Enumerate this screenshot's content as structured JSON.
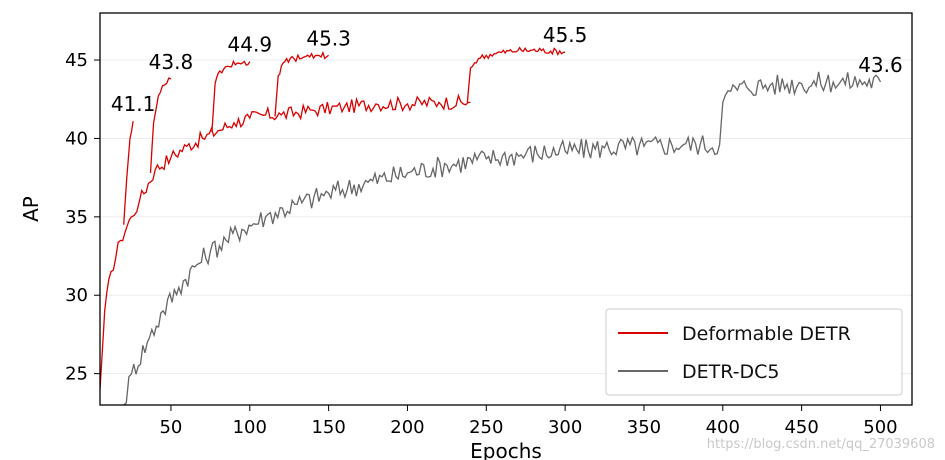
{
  "chart_data": {
    "type": "line",
    "title": "",
    "xlabel": "Epochs",
    "ylabel": "AP",
    "xlim": [
      5,
      520
    ],
    "ylim": [
      23,
      48
    ],
    "xticks": [
      50,
      100,
      150,
      200,
      250,
      300,
      350,
      400,
      450,
      500
    ],
    "yticks": [
      25,
      30,
      35,
      40,
      45
    ],
    "grid": "horizontal",
    "legend_position": "lower-right",
    "series": [
      {
        "name": "Deformable DETR",
        "color": "#d90000",
        "x": [
          5,
          8,
          12,
          18,
          25,
          30,
          40,
          50,
          60,
          70,
          80,
          90,
          100,
          110,
          120,
          140,
          160,
          180,
          200,
          220,
          240
        ],
        "y": [
          24,
          29,
          31.5,
          33.5,
          35,
          36,
          38,
          38.8,
          39.5,
          40,
          40.5,
          41,
          41.3,
          41.5,
          41.5,
          41.8,
          42,
          42.2,
          42.2,
          42.3,
          42.3
        ],
        "branches": [
          {
            "x": [
              20,
              22,
              24,
              26
            ],
            "y": [
              34.5,
              37.5,
              40,
              41.1
            ]
          },
          {
            "x": [
              37,
              39,
              42,
              46,
              50
            ],
            "y": [
              37.8,
              41,
              42.7,
              43.4,
              43.8
            ]
          },
          {
            "x": [
              76,
              78,
              81,
              86,
              92,
              100
            ],
            "y": [
              40.4,
              43.5,
              44.3,
              44.6,
              44.8,
              44.9
            ]
          },
          {
            "x": [
              116,
              118,
              121,
              128,
              138,
              150
            ],
            "y": [
              41.4,
              44,
              44.8,
              45.1,
              45.2,
              45.3
            ]
          },
          {
            "x": [
              238,
              240,
              245,
              255,
              270,
              285,
              300
            ],
            "y": [
              42.3,
              44.5,
              45.1,
              45.4,
              45.6,
              45.6,
              45.5
            ]
          }
        ]
      },
      {
        "name": "DETR-DC5",
        "color": "#666666",
        "x": [
          20,
          25,
          35,
          45,
          55,
          65,
          75,
          85,
          95,
          110,
          130,
          150,
          175,
          200,
          225,
          250,
          275,
          300,
          325,
          350,
          375,
          398,
          400,
          405,
          415,
          430,
          450,
          470,
          490,
          500
        ],
        "y": [
          23,
          25,
          27,
          29,
          30.5,
          31.8,
          32.8,
          33.5,
          34.2,
          35,
          35.8,
          36.5,
          37.2,
          37.8,
          38.3,
          38.7,
          39,
          39.2,
          39.4,
          39.5,
          39.6,
          39.6,
          42.3,
          43,
          43.3,
          43.4,
          43.5,
          43.6,
          43.6,
          43.6
        ]
      }
    ],
    "annotations": [
      {
        "text": "41.1",
        "x": 26,
        "y": 41.1
      },
      {
        "text": "43.8",
        "x": 50,
        "y": 43.8
      },
      {
        "text": "44.9",
        "x": 100,
        "y": 44.9
      },
      {
        "text": "45.3",
        "x": 150,
        "y": 45.3
      },
      {
        "text": "45.5",
        "x": 300,
        "y": 45.5
      },
      {
        "text": "43.6",
        "x": 500,
        "y": 43.6
      }
    ]
  },
  "watermark": "https://blog.csdn.net/qq_27039608"
}
